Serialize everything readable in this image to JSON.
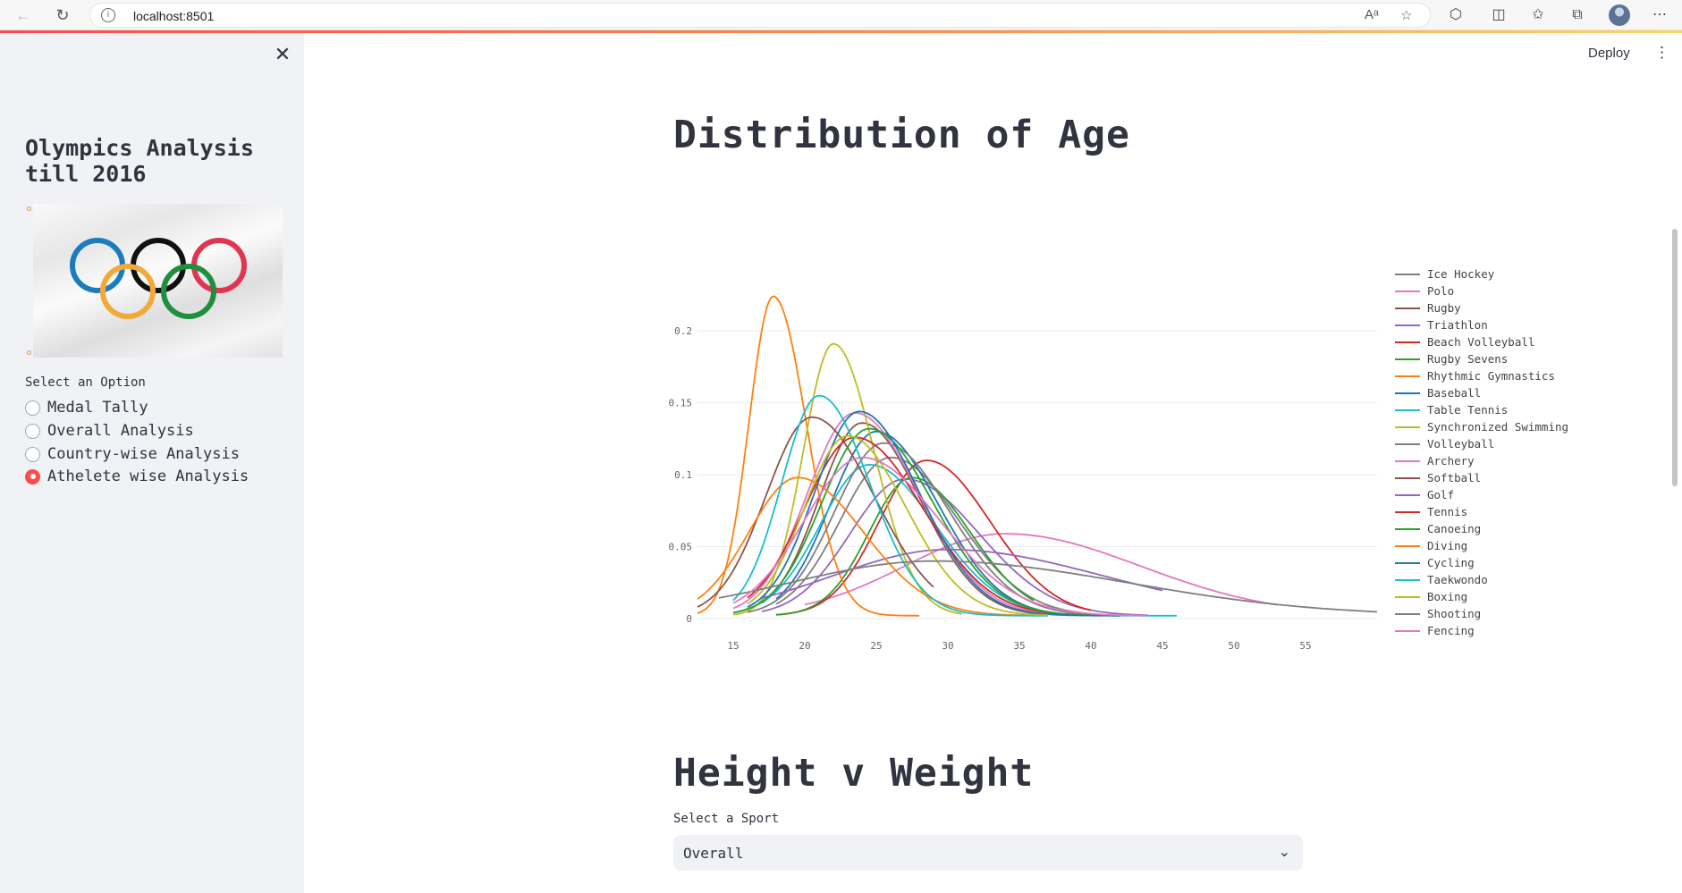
{
  "browser": {
    "url": "localhost:8501"
  },
  "sidebar": {
    "title": "Olympics Analysis till 2016",
    "options_label": "Select an Option",
    "options": [
      {
        "label": "Medal Tally",
        "selected": false
      },
      {
        "label": "Overall Analysis",
        "selected": false
      },
      {
        "label": "Country-wise Analysis",
        "selected": false
      },
      {
        "label": "Athelete wise Analysis",
        "selected": true
      }
    ]
  },
  "header": {
    "deploy_label": "Deploy"
  },
  "main": {
    "age_title": "Distribution of Age",
    "hw_title": "Height v Weight",
    "sport_select": {
      "label": "Select a Sport",
      "value": "Overall"
    }
  },
  "chart_data": {
    "type": "line",
    "title": "",
    "xlabel": "",
    "ylabel": "",
    "xlim": [
      12.5,
      60
    ],
    "ylim": [
      0,
      0.22
    ],
    "x_ticks": [
      15,
      20,
      25,
      30,
      35,
      40,
      45,
      50,
      55
    ],
    "y_ticks": [
      0,
      0.05,
      0.1,
      0.15,
      0.2
    ],
    "y_tick_labels": [
      "0",
      "0.05",
      "0.1",
      "0.15",
      "0.2"
    ],
    "grid": true,
    "legend": "right",
    "series": [
      {
        "name": "Ice Hockey",
        "color": "#7f7f7f",
        "peak": 26,
        "height": 0.11,
        "sd": 3.5,
        "x0": 18,
        "x1": 40
      },
      {
        "name": "Polo",
        "color": "#e377c2",
        "peak": 34,
        "height": 0.057,
        "sd": 7,
        "x0": 20,
        "x1": 53
      },
      {
        "name": "Rugby",
        "color": "#8c564b",
        "peak": 24,
        "height": 0.134,
        "sd": 3,
        "x0": 17,
        "x1": 37
      },
      {
        "name": "Triathlon",
        "color": "#9467bd",
        "peak": 27,
        "height": 0.095,
        "sd": 3.8,
        "x0": 17,
        "x1": 44
      },
      {
        "name": "Beach Volleyball",
        "color": "#d62728",
        "peak": 28.5,
        "height": 0.108,
        "sd": 3.3,
        "x0": 18,
        "x1": 40
      },
      {
        "name": "Rugby Sevens",
        "color": "#2ca02c",
        "peak": 27.5,
        "height": 0.096,
        "sd": 3,
        "x0": 18,
        "x1": 36
      },
      {
        "name": "Rhythmic Gymnastics",
        "color": "#ff7f0e",
        "peak": 17.8,
        "height": 0.222,
        "sd": 1.7,
        "x0": 12.5,
        "x1": 28
      },
      {
        "name": "Baseball",
        "color": "#1f77b4",
        "peak": 25,
        "height": 0.128,
        "sd": 3.2,
        "x0": 18,
        "x1": 38
      },
      {
        "name": "Table Tennis",
        "color": "#17becf",
        "peak": 24.5,
        "height": 0.105,
        "sd": 3.4,
        "x0": 15,
        "x1": 46
      },
      {
        "name": "Synchronized Swimming",
        "color": "#bcbd22",
        "peak": 22,
        "height": 0.189,
        "sd": 2.1,
        "x0": 15,
        "x1": 31
      },
      {
        "name": "Volleyball",
        "color": "#7f7f7f",
        "peak": 25.5,
        "height": 0.12,
        "sd": 3.4,
        "x0": 16,
        "x1": 40
      },
      {
        "name": "Archery",
        "color": "#e377c2",
        "peak": 23.5,
        "height": 0.141,
        "sd": 3.3,
        "x0": 15,
        "x1": 38
      },
      {
        "name": "Softball",
        "color": "#8c564b",
        "peak": 20.5,
        "height": 0.138,
        "sd": 3.2,
        "x0": 12.5,
        "x1": 29
      },
      {
        "name": "Golf",
        "color": "#9467bd",
        "peak": 30,
        "height": 0.046,
        "sd": 8,
        "x0": 17,
        "x1": 45
      },
      {
        "name": "Tennis",
        "color": "#d62728",
        "peak": 23.5,
        "height": 0.124,
        "sd": 3.5,
        "x0": 16,
        "x1": 41
      },
      {
        "name": "Canoeing",
        "color": "#2ca02c",
        "peak": 24.5,
        "height": 0.13,
        "sd": 3.3,
        "x0": 15,
        "x1": 42
      },
      {
        "name": "Diving",
        "color": "#ff7f0e",
        "peak": 19.5,
        "height": 0.096,
        "sd": 3.4,
        "x0": 12.5,
        "x1": 37
      },
      {
        "name": "Cycling",
        "color": "#1f77b4",
        "peak": 23.8,
        "height": 0.142,
        "sd": 3.1,
        "x0": 16,
        "x1": 42
      },
      {
        "name": "Taekwondo",
        "color": "#17becf",
        "peak": 21,
        "height": 0.153,
        "sd": 2.6,
        "x0": 15,
        "x1": 37
      },
      {
        "name": "Boxing",
        "color": "#bcbd22",
        "peak": 23,
        "height": 0.125,
        "sd": 3,
        "x0": 16,
        "x1": 37
      },
      {
        "name": "Shooting",
        "color": "#7f7f7f",
        "peak": 29,
        "height": 0.038,
        "sd": 10,
        "x0": 14,
        "x1": 60
      },
      {
        "name": "Fencing",
        "color": "#e377c2",
        "peak": 24,
        "height": 0.11,
        "sd": 4,
        "x0": 15,
        "x1": 44
      }
    ]
  }
}
